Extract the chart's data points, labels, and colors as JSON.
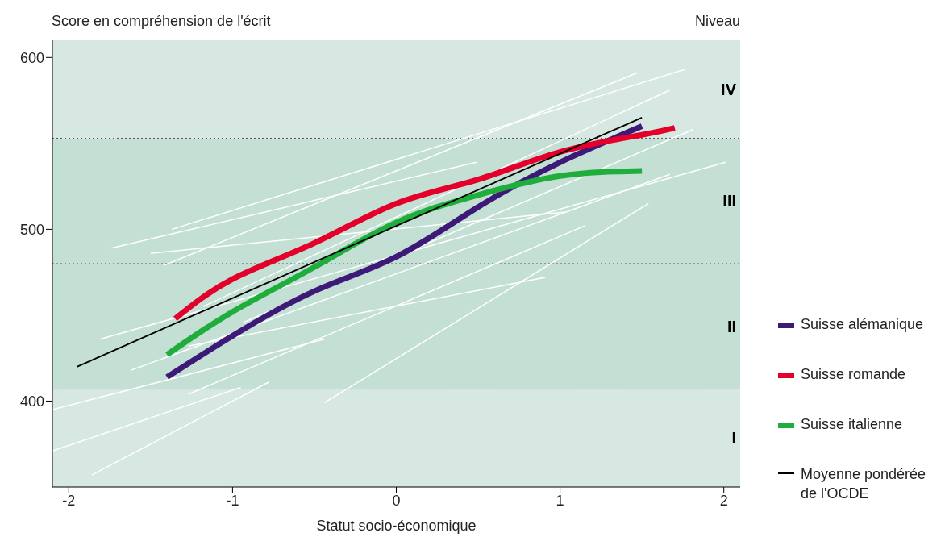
{
  "chart_data": {
    "type": "line",
    "xlabel": "Statut socio-économique",
    "ylabel": "Score en compréhension de l'écrit",
    "y2label": "Niveau",
    "xlim": [
      -2.1,
      2.1
    ],
    "xticks": [
      -2,
      -1,
      0,
      1,
      2
    ],
    "ylim": [
      350,
      610
    ],
    "yticks": [
      400,
      500,
      600
    ],
    "legend": "right",
    "marker": "none",
    "line_style": "solid",
    "bands": [
      {
        "axis": "y",
        "from": 350,
        "to": 407,
        "label": "I",
        "color": "#d7e7e1"
      },
      {
        "axis": "y",
        "from": 407,
        "to": 480,
        "label": "II",
        "color": "#c4dfd4"
      },
      {
        "axis": "y",
        "from": 480,
        "to": 553,
        "label": "III",
        "color": "#c4dfd4"
      },
      {
        "axis": "y",
        "from": 553,
        "to": 610,
        "label": "IV",
        "color": "#d7e7e1"
      }
    ],
    "ref_lines": [
      {
        "axis": "y",
        "value": 407,
        "line_style": "dotted",
        "color": "#555555"
      },
      {
        "axis": "y",
        "value": 480,
        "line_style": "dotted",
        "color": "#555555"
      },
      {
        "axis": "y",
        "value": 553,
        "line_style": "dotted",
        "color": "#555555"
      }
    ],
    "series": [
      {
        "color": "#ffffff",
        "x": [
          -2.1,
          -0.44
        ],
        "values": [
          395,
          436
        ]
      },
      {
        "color": "#ffffff",
        "x": [
          -2.1,
          -0.95
        ],
        "values": [
          371,
          408
        ]
      },
      {
        "color": "#ffffff",
        "x": [
          -1.86,
          -0.78
        ],
        "values": [
          357,
          411
        ]
      },
      {
        "color": "#ffffff",
        "x": [
          -1.74,
          0.49
        ],
        "values": [
          489,
          539
        ]
      },
      {
        "color": "#ffffff",
        "x": [
          -1.37,
          1.76
        ],
        "values": [
          500,
          593
        ]
      },
      {
        "color": "#ffffff",
        "x": [
          -1.5,
          1.03
        ],
        "values": [
          486,
          510
        ]
      },
      {
        "color": "#ffffff",
        "x": [
          -1.27,
          1.15
        ],
        "values": [
          404,
          502
        ]
      },
      {
        "color": "#ffffff",
        "x": [
          -0.44,
          1.54
        ],
        "values": [
          399,
          515
        ]
      },
      {
        "color": "#ffffff",
        "x": [
          -1.27,
          0.91
        ],
        "values": [
          432,
          472
        ]
      },
      {
        "color": "#ffffff",
        "x": [
          -1.81,
          2.01
        ],
        "values": [
          436,
          539
        ]
      },
      {
        "color": "#ffffff",
        "x": [
          -1.62,
          1.67
        ],
        "values": [
          418,
          532
        ]
      },
      {
        "color": "#ffffff",
        "x": [
          -1.42,
          1.47
        ],
        "values": [
          479,
          591
        ]
      },
      {
        "color": "#ffffff",
        "x": [
          -1.18,
          1.67
        ],
        "values": [
          455,
          581
        ]
      },
      {
        "color": "#ffffff",
        "x": [
          -0.93,
          1.81
        ],
        "values": [
          446,
          558
        ]
      },
      {
        "name": "Suisse alémanique",
        "color": "#3d1a78",
        "x": [
          -1.4,
          -1,
          -0.5,
          0,
          0.5,
          1,
          1.5
        ],
        "values": [
          414,
          438,
          464,
          484,
          513,
          539,
          560
        ]
      },
      {
        "name": "Suisse romande",
        "color": "#e4002b",
        "x": [
          -1.35,
          -1,
          -0.5,
          0,
          0.5,
          1,
          1.5,
          1.7
        ],
        "values": [
          448,
          471,
          492,
          515,
          529,
          545,
          555,
          559
        ]
      },
      {
        "name": "Suisse italienne",
        "color": "#1fad3c",
        "x": [
          -1.4,
          -1,
          -0.5,
          0,
          0.5,
          1,
          1.5
        ],
        "values": [
          427,
          452,
          478,
          504,
          520,
          531,
          534
        ]
      },
      {
        "name": "Moyenne pondérée de l'OCDE",
        "color": "#000000",
        "x": [
          -1.95,
          1.5
        ],
        "values": [
          420,
          565
        ]
      }
    ]
  }
}
